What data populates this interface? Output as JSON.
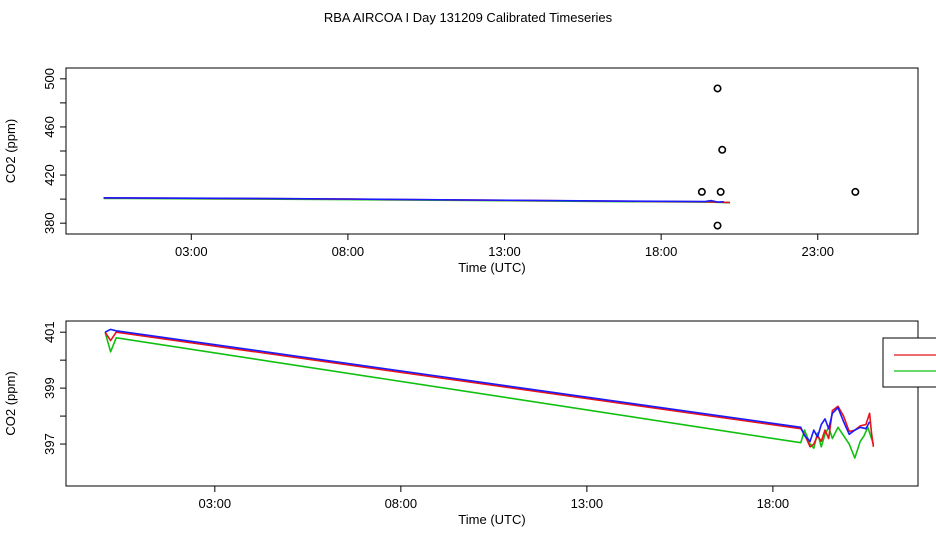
{
  "title": "RBA AIRCOA I  Day 131209  Calibrated Timeseries",
  "colors": {
    "red": "#e8121a",
    "green": "#10c010",
    "blue": "#1a1aff",
    "points": "#000000"
  },
  "chart_data": [
    {
      "type": "line",
      "xlabel": "Time (UTC)",
      "ylabel": "CO2 (ppm)",
      "xlim_hours": [
        -1,
        26.2
      ],
      "ylim": [
        371,
        509
      ],
      "xticks": [
        {
          "v": 3,
          "label": "03:00"
        },
        {
          "v": 8,
          "label": "08:00"
        },
        {
          "v": 13,
          "label": "13:00"
        },
        {
          "v": 18,
          "label": "18:00"
        },
        {
          "v": 23,
          "label": "23:00"
        }
      ],
      "yticks": [
        {
          "v": 380,
          "label": "380"
        },
        {
          "v": 420,
          "label": "420"
        },
        {
          "v": 460,
          "label": "460"
        },
        {
          "v": 500,
          "label": "500"
        }
      ],
      "series": [
        {
          "color": "green",
          "x": [
            0.2,
            4.0,
            8.0,
            12.0,
            16.0,
            19.5,
            20.2
          ],
          "y": [
            400.6,
            400.2,
            399.6,
            398.9,
            398.1,
            397.5,
            397.0
          ]
        },
        {
          "color": "red",
          "x": [
            0.2,
            4.0,
            8.0,
            12.0,
            16.0,
            19.5,
            20.2
          ],
          "y": [
            401.0,
            400.6,
            400.0,
            399.2,
            398.4,
            397.8,
            397.2
          ]
        },
        {
          "color": "blue",
          "x": [
            0.2,
            4.0,
            8.0,
            12.0,
            16.0,
            19.4,
            19.6,
            19.8,
            20.0
          ],
          "y": [
            401.1,
            400.7,
            400.1,
            399.3,
            398.5,
            397.9,
            398.8,
            397.6,
            397.8
          ]
        }
      ],
      "points": {
        "x": [
          19.3,
          19.8,
          19.9,
          19.95,
          19.8,
          24.2
        ],
        "y": [
          406,
          378,
          406,
          441,
          492,
          406
        ]
      }
    },
    {
      "type": "line",
      "xlabel": "Time (UTC)",
      "ylabel": "CO2 (ppm)",
      "xlim_hours": [
        -1,
        21.9
      ],
      "ylim": [
        395.5,
        401.4
      ],
      "xticks": [
        {
          "v": 3,
          "label": "03:00"
        },
        {
          "v": 8,
          "label": "08:00"
        },
        {
          "v": 13,
          "label": "13:00"
        },
        {
          "v": 18,
          "label": "18:00"
        }
      ],
      "yticks": [
        {
          "v": 397,
          "label": "397"
        },
        {
          "v": 399,
          "label": "399"
        },
        {
          "v": 401,
          "label": "401"
        }
      ],
      "legend": {
        "position": "right",
        "entries": [
          {
            "color": "red",
            "name": ""
          },
          {
            "color": "green",
            "name": ""
          }
        ]
      },
      "series": [
        {
          "color": "green",
          "x": [
            0.05,
            0.2,
            0.35,
            18.75,
            18.85,
            19.0,
            19.1,
            19.2,
            19.3,
            19.4,
            19.5,
            19.6,
            19.75,
            19.9,
            20.05,
            20.2,
            20.35,
            20.45,
            20.55,
            20.65,
            20.7
          ],
          "y": [
            401.0,
            400.3,
            400.8,
            397.05,
            397.5,
            397.0,
            396.85,
            397.4,
            396.9,
            397.35,
            397.6,
            397.2,
            397.6,
            397.3,
            397.0,
            396.5,
            397.1,
            397.3,
            397.6,
            397.2,
            397.0
          ]
        },
        {
          "color": "red",
          "x": [
            0.05,
            0.2,
            0.35,
            18.75,
            18.85,
            19.0,
            19.1,
            19.2,
            19.3,
            19.4,
            19.5,
            19.6,
            19.75,
            19.9,
            20.05,
            20.2,
            20.35,
            20.5,
            20.6,
            20.65,
            20.7
          ],
          "y": [
            401.0,
            400.7,
            401.0,
            397.55,
            397.35,
            396.9,
            397.0,
            397.3,
            397.1,
            397.5,
            397.2,
            398.2,
            398.35,
            398.0,
            397.45,
            397.5,
            397.65,
            397.7,
            398.1,
            397.4,
            396.9
          ]
        },
        {
          "color": "blue",
          "x": [
            0.05,
            0.2,
            0.35,
            18.75,
            18.85,
            19.0,
            19.1,
            19.2,
            19.3,
            19.4,
            19.5,
            19.6,
            19.75,
            19.9,
            20.05,
            20.2,
            20.35,
            20.5,
            20.6
          ],
          "y": [
            401.0,
            401.1,
            401.05,
            397.6,
            397.3,
            397.1,
            397.5,
            397.25,
            397.7,
            397.9,
            397.55,
            398.1,
            398.3,
            397.8,
            397.35,
            397.5,
            397.6,
            397.55,
            397.8
          ]
        }
      ]
    }
  ]
}
